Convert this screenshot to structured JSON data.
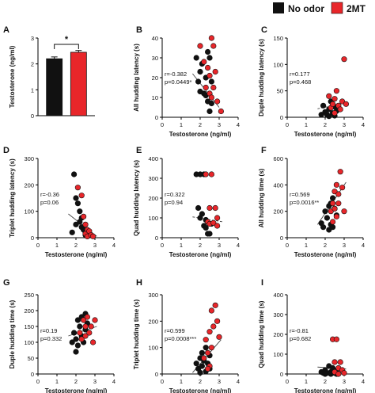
{
  "legend": {
    "items": [
      {
        "label": "No odor",
        "color": "#111111"
      },
      {
        "label": "2MT",
        "color": "#e8262a"
      }
    ]
  },
  "colors": {
    "no_odor": "#111111",
    "mt": "#e8262a",
    "axis": "#000000",
    "regression": "#444444"
  },
  "chart_data": [
    {
      "panel": "A",
      "type": "bar",
      "categories": [
        "No odor",
        "2MT"
      ],
      "values": [
        2.2,
        2.45
      ],
      "errors": [
        0.07,
        0.07
      ],
      "colors": [
        "#111111",
        "#e8262a"
      ],
      "ylabel": "Testosterone (ng/ml)",
      "ylim": [
        0,
        3
      ],
      "yticks": [
        0,
        1,
        2,
        3
      ],
      "annotation": "*"
    },
    {
      "panel": "B",
      "type": "scatter",
      "ylabel": "All hudding latency (s)",
      "xlabel": "Testosterone (ng/ml)",
      "xlim": [
        0,
        4
      ],
      "ylim": [
        0,
        40
      ],
      "xticks": [
        0,
        1,
        2,
        3,
        4
      ],
      "yticks": [
        0,
        10,
        20,
        30,
        40
      ],
      "stats": [
        "r=-0.382",
        "p=0.0449*"
      ],
      "regression": {
        "style": "solid",
        "x": [
          1.6,
          3.0
        ],
        "y": [
          22,
          5
        ]
      },
      "series": [
        {
          "name": "No odor",
          "points": [
            [
              1.8,
              30
            ],
            [
              1.9,
              18
            ],
            [
              2.0,
              23
            ],
            [
              2.0,
              13
            ],
            [
              2.1,
              27
            ],
            [
              2.2,
              12
            ],
            [
              2.3,
              20
            ],
            [
              2.3,
              11
            ],
            [
              2.4,
              33
            ],
            [
              2.4,
              8
            ],
            [
              2.5,
              30
            ],
            [
              2.5,
              3
            ],
            [
              2.6,
              7
            ],
            [
              2.6,
              18
            ]
          ]
        },
        {
          "name": "2MT",
          "points": [
            [
              2.0,
              36
            ],
            [
              2.2,
              28
            ],
            [
              2.3,
              15
            ],
            [
              2.4,
              25
            ],
            [
              2.5,
              12
            ],
            [
              2.5,
              21
            ],
            [
              2.6,
              40
            ],
            [
              2.6,
              10
            ],
            [
              2.7,
              36
            ],
            [
              2.8,
              23
            ],
            [
              2.9,
              8
            ],
            [
              3.1,
              3
            ],
            [
              2.7,
              15
            ]
          ]
        }
      ]
    },
    {
      "panel": "C",
      "type": "scatter",
      "ylabel": "Duple hudding latency (s)",
      "xlabel": "Testosterone (ng/ml)",
      "xlim": [
        0,
        4
      ],
      "ylim": [
        0,
        150
      ],
      "xticks": [
        0,
        1,
        2,
        3,
        4
      ],
      "yticks": [
        0,
        50,
        100,
        150
      ],
      "stats": [
        "r=0.177",
        "p=0.468"
      ],
      "regression": {
        "style": "dashed",
        "x": [
          1.6,
          3.2
        ],
        "y": [
          16,
          28
        ]
      },
      "series": [
        {
          "name": "No odor",
          "points": [
            [
              1.8,
              5
            ],
            [
              1.9,
              22
            ],
            [
              2.0,
              10
            ],
            [
              2.1,
              5
            ],
            [
              2.2,
              15
            ],
            [
              2.2,
              2
            ],
            [
              2.3,
              30
            ],
            [
              2.4,
              8
            ],
            [
              2.5,
              20
            ],
            [
              2.5,
              3
            ],
            [
              2.6,
              12
            ]
          ]
        },
        {
          "name": "2MT",
          "points": [
            [
              2.2,
              40
            ],
            [
              2.3,
              18
            ],
            [
              2.4,
              25
            ],
            [
              2.5,
              35
            ],
            [
              2.5,
              8
            ],
            [
              2.6,
              50
            ],
            [
              2.7,
              22
            ],
            [
              2.8,
              15
            ],
            [
              2.9,
              30
            ],
            [
              3.0,
              110
            ],
            [
              3.1,
              25
            ]
          ]
        }
      ]
    },
    {
      "panel": "D",
      "type": "scatter",
      "ylabel": "Triplet hudding latency (s)",
      "xlabel": "Testosterone (ng/ml)",
      "xlim": [
        0,
        4
      ],
      "ylim": [
        0,
        300
      ],
      "xticks": [
        0,
        1,
        2,
        3,
        4
      ],
      "yticks": [
        0,
        100,
        200,
        300
      ],
      "stats": [
        "r=-0.36",
        "p=0.06"
      ],
      "regression": {
        "style": "solid",
        "x": [
          1.6,
          3.1
        ],
        "y": [
          90,
          5
        ]
      },
      "series": [
        {
          "name": "No odor",
          "points": [
            [
              1.9,
              240
            ],
            [
              2.0,
              150
            ],
            [
              2.1,
              130
            ],
            [
              2.2,
              100
            ],
            [
              2.2,
              60
            ],
            [
              2.3,
              75
            ],
            [
              2.3,
              40
            ],
            [
              2.4,
              30
            ],
            [
              2.5,
              20
            ],
            [
              2.5,
              10
            ],
            [
              2.6,
              5
            ],
            [
              2.0,
              50
            ],
            [
              1.8,
              20
            ]
          ]
        },
        {
          "name": "2MT",
          "points": [
            [
              2.1,
              190
            ],
            [
              2.3,
              160
            ],
            [
              2.4,
              80
            ],
            [
              2.5,
              50
            ],
            [
              2.5,
              15
            ],
            [
              2.6,
              30
            ],
            [
              2.6,
              5
            ],
            [
              2.7,
              25
            ],
            [
              2.8,
              10
            ],
            [
              2.9,
              5
            ]
          ]
        }
      ]
    },
    {
      "panel": "E",
      "type": "scatter",
      "ylabel": "Quad hudding latency (s)",
      "xlabel": "Testosterone (ng/ml)",
      "xlim": [
        0,
        4
      ],
      "ylim": [
        0,
        400
      ],
      "xticks": [
        0,
        1,
        2,
        3,
        4
      ],
      "yticks": [
        0,
        100,
        200,
        300,
        400
      ],
      "stats": [
        "r=0.322",
        "p=0.94"
      ],
      "regression": {
        "style": "dashed",
        "x": [
          1.6,
          3.2
        ],
        "y": [
          105,
          80
        ]
      },
      "series": [
        {
          "name": "No odor",
          "points": [
            [
              1.8,
              320
            ],
            [
              1.9,
              150
            ],
            [
              2.0,
              320
            ],
            [
              2.0,
              100
            ],
            [
              2.1,
              120
            ],
            [
              2.2,
              320
            ],
            [
              2.2,
              60
            ],
            [
              2.3,
              50
            ],
            [
              2.3,
              90
            ],
            [
              2.4,
              20
            ],
            [
              2.5,
              20
            ],
            [
              2.6,
              70
            ]
          ]
        },
        {
          "name": "2MT",
          "points": [
            [
              2.3,
              320
            ],
            [
              2.4,
              80
            ],
            [
              2.5,
              70
            ],
            [
              2.5,
              150
            ],
            [
              2.6,
              320
            ],
            [
              2.7,
              75
            ],
            [
              2.8,
              150
            ],
            [
              2.9,
              60
            ],
            [
              2.9,
              100
            ]
          ]
        }
      ]
    },
    {
      "panel": "F",
      "type": "scatter",
      "ylabel": "All hudding time (s)",
      "xlabel": "Testosterone (ng/ml)",
      "xlim": [
        0,
        4
      ],
      "ylim": [
        0,
        600
      ],
      "xticks": [
        0,
        1,
        2,
        3,
        4
      ],
      "yticks": [
        0,
        200,
        400,
        600
      ],
      "stats": [
        "r=0.569",
        "p=0.0016**"
      ],
      "regression": {
        "style": "solid",
        "x": [
          1.6,
          3.1
        ],
        "y": [
          100,
          420
        ]
      },
      "series": [
        {
          "name": "No odor",
          "points": [
            [
              1.8,
              110
            ],
            [
              1.9,
              80
            ],
            [
              2.0,
              200
            ],
            [
              2.1,
              150
            ],
            [
              2.2,
              240
            ],
            [
              2.3,
              100
            ],
            [
              2.3,
              260
            ],
            [
              2.4,
              80
            ],
            [
              2.4,
              300
            ],
            [
              2.5,
              220
            ],
            [
              2.6,
              170
            ],
            [
              2.2,
              60
            ]
          ]
        },
        {
          "name": "2MT",
          "points": [
            [
              2.3,
              200
            ],
            [
              2.4,
              260
            ],
            [
              2.4,
              120
            ],
            [
              2.5,
              350
            ],
            [
              2.5,
              220
            ],
            [
              2.6,
              400
            ],
            [
              2.6,
              160
            ],
            [
              2.7,
              330
            ],
            [
              2.7,
              260
            ],
            [
              2.8,
              500
            ],
            [
              2.9,
              380
            ],
            [
              3.0,
              200
            ]
          ]
        }
      ]
    },
    {
      "panel": "G",
      "type": "scatter",
      "ylabel": "Duple hudding time (s)",
      "xlabel": "Testosterone (ng/ml)",
      "xlim": [
        0,
        4
      ],
      "ylim": [
        0,
        250
      ],
      "xticks": [
        0,
        1,
        2,
        3,
        4
      ],
      "yticks": [
        0,
        50,
        100,
        150,
        200,
        250
      ],
      "stats": [
        "r=0.19",
        "p=0.332"
      ],
      "regression": {
        "style": "solid",
        "x": [
          1.6,
          3.1
        ],
        "y": [
          120,
          150
        ]
      },
      "series": [
        {
          "name": "No odor",
          "points": [
            [
              1.8,
              100
            ],
            [
              1.9,
              130
            ],
            [
              2.0,
              110
            ],
            [
              2.1,
              170
            ],
            [
              2.1,
              90
            ],
            [
              2.2,
              150
            ],
            [
              2.3,
              120
            ],
            [
              2.3,
              180
            ],
            [
              2.4,
              100
            ],
            [
              2.5,
              140
            ],
            [
              2.5,
              190
            ],
            [
              2.6,
              160
            ],
            [
              2.0,
              70
            ]
          ]
        },
        {
          "name": "2MT",
          "points": [
            [
              2.2,
              130
            ],
            [
              2.3,
              110
            ],
            [
              2.4,
              170
            ],
            [
              2.5,
              150
            ],
            [
              2.5,
              120
            ],
            [
              2.6,
              180
            ],
            [
              2.7,
              130
            ],
            [
              2.8,
              150
            ],
            [
              2.9,
              100
            ],
            [
              3.0,
              170
            ]
          ]
        }
      ]
    },
    {
      "panel": "H",
      "type": "scatter",
      "ylabel": "Triplet hudding time (s)",
      "xlabel": "Testosterone (ng/ml)",
      "xlim": [
        0,
        4
      ],
      "ylim": [
        0,
        300
      ],
      "xticks": [
        0,
        1,
        2,
        3,
        4
      ],
      "yticks": [
        0,
        100,
        200,
        300
      ],
      "stats": [
        "r=0.599",
        "p=0.0008***"
      ],
      "regression": {
        "style": "solid",
        "x": [
          1.6,
          3.1
        ],
        "y": [
          5,
          130
        ]
      },
      "series": [
        {
          "name": "No odor",
          "points": [
            [
              1.8,
              40
            ],
            [
              1.9,
              20
            ],
            [
              2.0,
              60
            ],
            [
              2.1,
              30
            ],
            [
              2.1,
              80
            ],
            [
              2.2,
              50
            ],
            [
              2.3,
              10
            ],
            [
              2.3,
              100
            ],
            [
              2.4,
              40
            ],
            [
              2.5,
              70
            ],
            [
              2.5,
              20
            ],
            [
              2.0,
              5
            ]
          ]
        },
        {
          "name": "2MT",
          "points": [
            [
              2.2,
              60
            ],
            [
              2.3,
              130
            ],
            [
              2.4,
              80
            ],
            [
              2.5,
              30
            ],
            [
              2.5,
              160
            ],
            [
              2.6,
              100
            ],
            [
              2.6,
              240
            ],
            [
              2.7,
              180
            ],
            [
              2.8,
              260
            ],
            [
              2.9,
              200
            ],
            [
              3.0,
              140
            ],
            [
              2.4,
              20
            ]
          ]
        }
      ]
    },
    {
      "panel": "I",
      "type": "scatter",
      "ylabel": "Quad hudding time (s)",
      "xlabel": "Testosterone (ng/ml)",
      "xlim": [
        0,
        4
      ],
      "ylim": [
        0,
        400
      ],
      "xticks": [
        0,
        1,
        2,
        3,
        4
      ],
      "yticks": [
        0,
        100,
        200,
        300,
        400
      ],
      "stats": [
        "r=-0.81",
        "p=0.682"
      ],
      "regression": {
        "style": "solid",
        "x": [
          1.6,
          3.1
        ],
        "y": [
          35,
          25
        ]
      },
      "series": [
        {
          "name": "No odor",
          "points": [
            [
              1.8,
              10
            ],
            [
              1.9,
              5
            ],
            [
              2.0,
              20
            ],
            [
              2.1,
              5
            ],
            [
              2.2,
              40
            ],
            [
              2.3,
              10
            ],
            [
              2.3,
              0
            ],
            [
              2.4,
              30
            ],
            [
              2.5,
              5
            ],
            [
              2.6,
              15
            ],
            [
              2.6,
              0
            ],
            [
              2.0,
              0
            ]
          ]
        },
        {
          "name": "2MT",
          "points": [
            [
              2.4,
              175
            ],
            [
              2.5,
              60
            ],
            [
              2.5,
              10
            ],
            [
              2.6,
              175
            ],
            [
              2.7,
              30
            ],
            [
              2.8,
              60
            ],
            [
              2.9,
              20
            ],
            [
              3.0,
              5
            ],
            [
              2.7,
              0
            ]
          ]
        }
      ]
    }
  ]
}
